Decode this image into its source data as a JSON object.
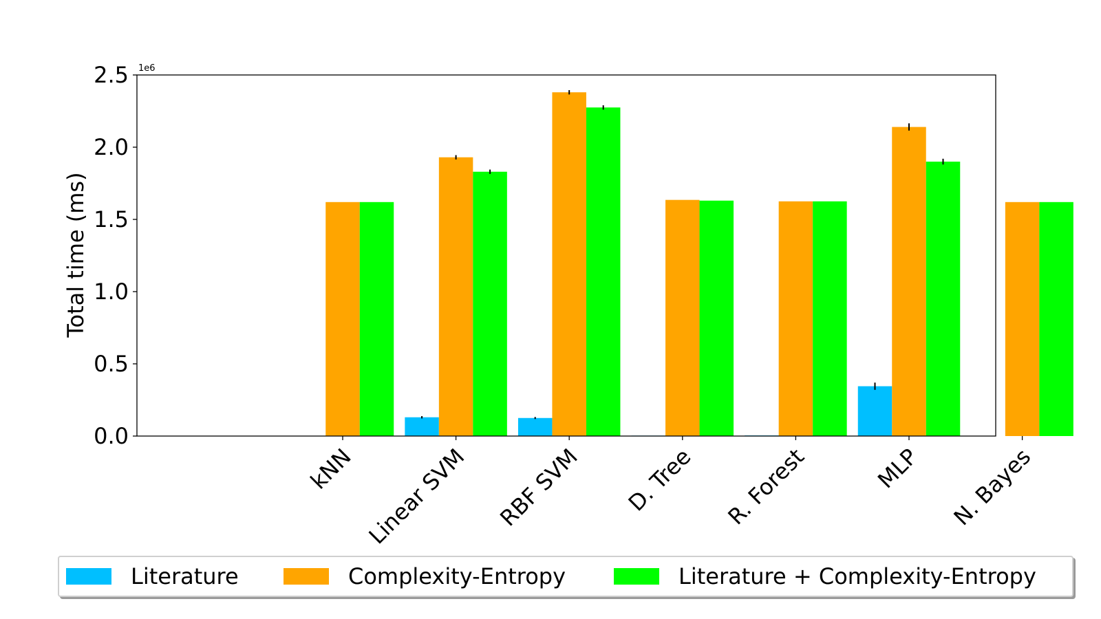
{
  "chart_data": {
    "type": "bar",
    "title": "",
    "xlabel": "",
    "ylabel": "Total time (ms)",
    "offset_label": "1e6",
    "ylim": [
      0,
      2500000
    ],
    "yticks": [
      0,
      500000,
      1000000,
      1500000,
      2000000,
      2500000
    ],
    "ytick_labels": [
      "0.0",
      "0.5",
      "1.0",
      "1.5",
      "2.0",
      "2.5"
    ],
    "categories": [
      "kNN",
      "Linear SVM",
      "RBF SVM",
      "D. Tree",
      "R. Forest",
      "MLP",
      "N. Bayes"
    ],
    "series": [
      {
        "name": "Literature",
        "color": "#00bfff",
        "values": [
          0,
          130000,
          125000,
          3000,
          4000,
          345000,
          0
        ],
        "errors": [
          0,
          8000,
          7000,
          0,
          0,
          25000,
          0
        ]
      },
      {
        "name": "Complexity-Entropy",
        "color": "#ffa500",
        "values": [
          1620000,
          1930000,
          2380000,
          1635000,
          1625000,
          2140000,
          1620000
        ],
        "errors": [
          0,
          15000,
          15000,
          0,
          0,
          25000,
          0
        ]
      },
      {
        "name": "Literature + Complexity-Entropy",
        "color": "#00ff00",
        "values": [
          1620000,
          1830000,
          2275000,
          1630000,
          1625000,
          1900000,
          1620000
        ],
        "errors": [
          0,
          15000,
          15000,
          0,
          0,
          20000,
          0
        ]
      }
    ],
    "legend_position": "bottom",
    "grid": false
  }
}
